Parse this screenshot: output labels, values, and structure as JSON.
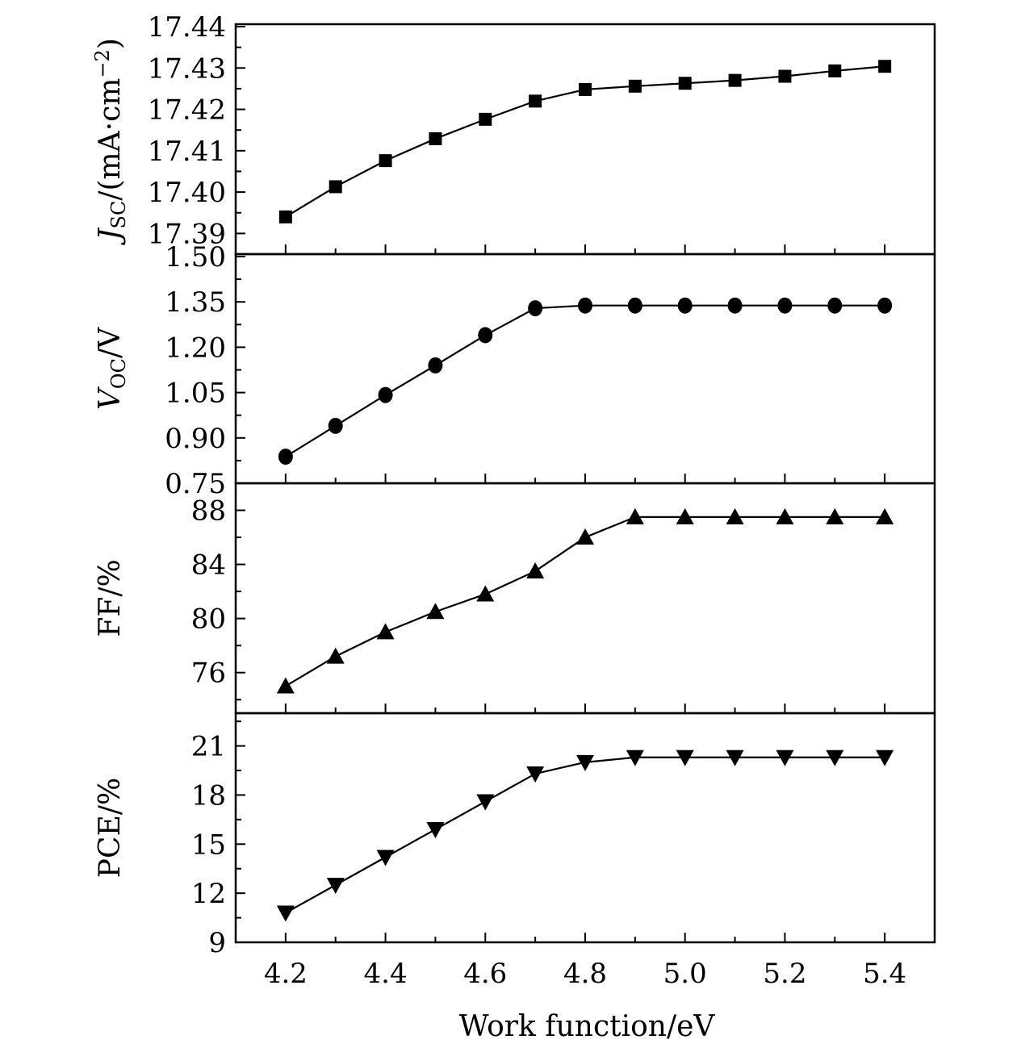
{
  "chart_data": [
    {
      "type": "line",
      "panel": "jsc",
      "ylabel_main": "J",
      "ylabel_sub": "SC",
      "ylabel_rest": "/(mA·cm",
      "ylabel_sup": "−2",
      "ylabel_close": ")",
      "ylim": [
        17.385,
        17.44
      ],
      "yticks": [
        17.39,
        17.4,
        17.41,
        17.42,
        17.43,
        17.44
      ],
      "ytick_labels": [
        "17.39",
        "17.40",
        "17.41",
        "17.42",
        "17.43",
        "17.44"
      ],
      "marker": "square",
      "x": [
        4.2,
        4.3,
        4.4,
        4.5,
        4.6,
        4.7,
        4.8,
        4.9,
        5.0,
        5.1,
        5.2,
        5.3,
        5.4
      ],
      "y": [
        17.394,
        17.4013,
        17.4076,
        17.4129,
        17.4176,
        17.422,
        17.4248,
        17.4256,
        17.4263,
        17.427,
        17.428,
        17.4293,
        17.4304
      ]
    },
    {
      "type": "line",
      "panel": "voc",
      "ylabel_main": "V",
      "ylabel_sub": "OC",
      "ylabel_rest": "/V",
      "ylim": [
        0.75,
        1.5
      ],
      "yticks": [
        0.75,
        0.9,
        1.05,
        1.2,
        1.35,
        1.5
      ],
      "ytick_labels": [
        "0.75",
        "0.90",
        "1.05",
        "1.20",
        "1.35",
        "1.50"
      ],
      "marker": "circle",
      "x": [
        4.2,
        4.3,
        4.4,
        4.5,
        4.6,
        4.7,
        4.8,
        4.9,
        5.0,
        5.1,
        5.2,
        5.3,
        5.4
      ],
      "y": [
        0.838,
        0.94,
        1.042,
        1.14,
        1.24,
        1.329,
        1.338,
        1.338,
        1.338,
        1.338,
        1.338,
        1.338,
        1.338
      ]
    },
    {
      "type": "line",
      "panel": "ff",
      "ylabel_main": "FF/%",
      "ylim": [
        73.0,
        90.0
      ],
      "yticks": [
        76,
        80,
        84,
        88
      ],
      "ytick_labels": [
        "76",
        "80",
        "84",
        "88"
      ],
      "marker": "triangle-up",
      "x": [
        4.2,
        4.3,
        4.4,
        4.5,
        4.6,
        4.7,
        4.8,
        4.9,
        5.0,
        5.1,
        5.2,
        5.3,
        5.4
      ],
      "y": [
        75.0,
        77.2,
        79.0,
        80.5,
        81.8,
        83.5,
        86.0,
        87.5,
        87.5,
        87.5,
        87.5,
        87.5,
        87.5
      ]
    },
    {
      "type": "line",
      "panel": "pce",
      "ylabel_main": "PCE/%",
      "ylim": [
        9,
        23
      ],
      "yticks": [
        9,
        12,
        15,
        18,
        21
      ],
      "ytick_labels": [
        "9",
        "12",
        "15",
        "18",
        "21"
      ],
      "marker": "triangle-down",
      "x": [
        4.2,
        4.3,
        4.4,
        4.5,
        4.6,
        4.7,
        4.8,
        4.9,
        5.0,
        5.1,
        5.2,
        5.3,
        5.4
      ],
      "y": [
        10.8,
        12.5,
        14.2,
        15.9,
        17.6,
        19.3,
        20.0,
        20.3,
        20.3,
        20.3,
        20.3,
        20.3,
        20.3
      ]
    }
  ],
  "shared_x": {
    "xlabel": "Work function/eV",
    "xlim": [
      4.1,
      5.5
    ],
    "xticks": [
      4.2,
      4.4,
      4.6,
      4.8,
      5.0,
      5.2,
      5.4
    ],
    "xtick_labels": [
      "4.2",
      "4.4",
      "4.6",
      "4.8",
      "5.0",
      "5.2",
      "5.4"
    ],
    "minor_xticks": [
      4.3,
      4.5,
      4.7,
      4.9,
      5.1,
      5.3
    ]
  },
  "colors": {
    "line": "#000000",
    "marker": "#000000",
    "background": "#ffffff"
  }
}
